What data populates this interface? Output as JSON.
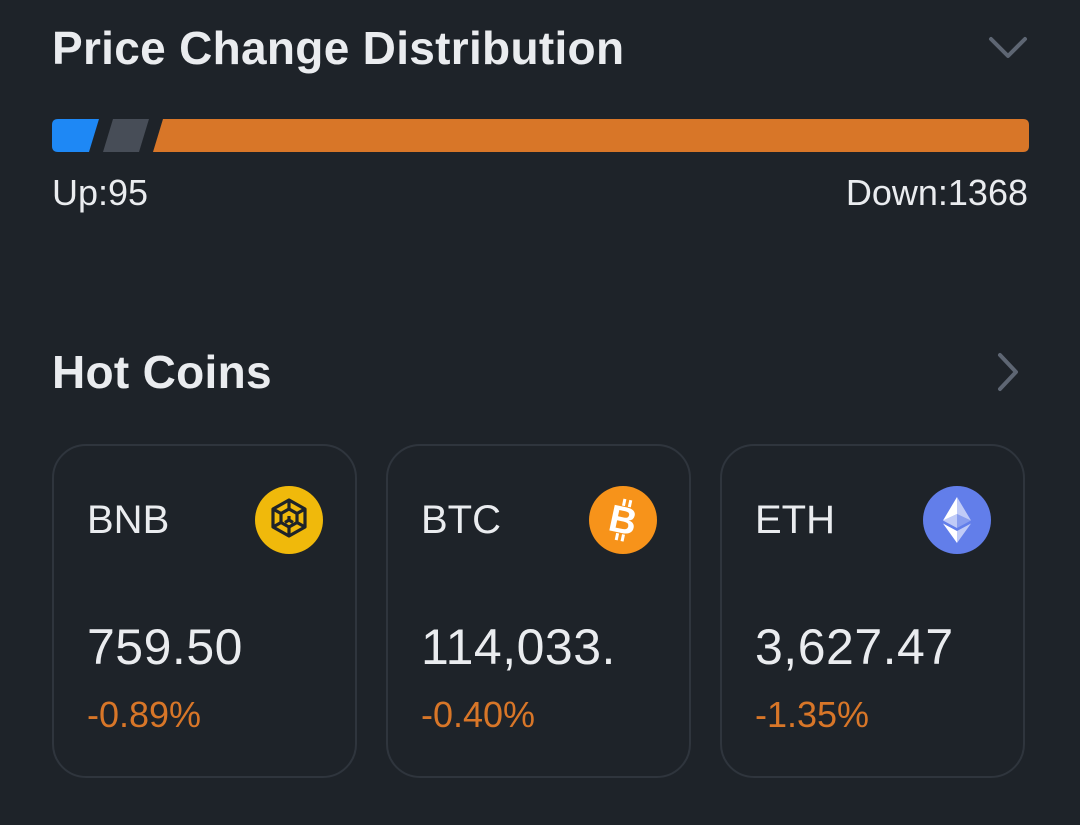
{
  "distribution": {
    "title": "Price Change Distribution",
    "up_label": "Up:95",
    "down_label": "Down:1368",
    "up_count": 95,
    "down_count": 1368,
    "colors": {
      "up": "#1e88f5",
      "flat": "#474d57",
      "down": "#d87628"
    }
  },
  "hot_coins": {
    "title": "Hot Coins",
    "coins": [
      {
        "symbol": "BNB",
        "price": "759.50",
        "change": "-0.89%",
        "icon": "bnb-icon",
        "icon_color": "#f0b90b"
      },
      {
        "symbol": "BTC",
        "price": "114,033.",
        "change": "-0.40%",
        "icon": "btc-icon",
        "icon_color": "#f7931a"
      },
      {
        "symbol": "ETH",
        "price": "3,627.47",
        "change": "-1.35%",
        "icon": "eth-icon",
        "icon_color": "#627eea"
      }
    ],
    "change_color": "#d87628"
  }
}
